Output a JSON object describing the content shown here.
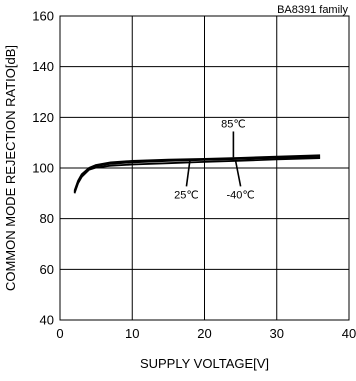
{
  "chart_data": {
    "type": "line",
    "title": "",
    "subtitle": "BA8391 family",
    "xlabel": "SUPPLY VOLTAGE[V]",
    "ylabel": "COMMON MODE REJECTION RATIO[dB]",
    "xlim": [
      0,
      40
    ],
    "ylim": [
      40,
      160
    ],
    "x_ticks": [
      0,
      10,
      20,
      30,
      40
    ],
    "y_ticks": [
      40,
      60,
      80,
      100,
      120,
      140,
      160
    ],
    "grid": true,
    "legend": "none",
    "series": [
      {
        "name": "85℃",
        "x": [
          2,
          2.5,
          3,
          4,
          5,
          7,
          10,
          15,
          20,
          25,
          30,
          36
        ],
        "y": [
          91,
          95,
          97.5,
          100,
          101.2,
          102.2,
          102.8,
          103.3,
          103.6,
          104,
          104.5,
          105
        ]
      },
      {
        "name": "25℃",
        "x": [
          2,
          2.5,
          3,
          4,
          5,
          7,
          10,
          15,
          20,
          25,
          30,
          36
        ],
        "y": [
          90.5,
          94.5,
          97,
          99.8,
          100.8,
          101.7,
          102.2,
          102.8,
          103.2,
          103.6,
          104,
          104.4
        ]
      },
      {
        "name": "-40℃",
        "x": [
          2,
          2.5,
          3,
          4,
          5,
          7,
          10,
          15,
          20,
          25,
          30,
          36
        ],
        "y": [
          90,
          94,
          96.5,
          99.3,
          100.2,
          100.9,
          101.4,
          101.9,
          102.4,
          102.9,
          103.4,
          103.9
        ]
      }
    ],
    "annotations": [
      {
        "text": "85℃",
        "x": 24,
        "y": 116,
        "point_x": 24,
        "point_y": 104.2
      },
      {
        "text": "25℃",
        "x": 17.5,
        "y": 88,
        "point_x": 18,
        "point_y": 103.4
      },
      {
        "text": "-40℃",
        "x": 25,
        "y": 88,
        "point_x": 24.3,
        "point_y": 102.9
      }
    ]
  }
}
